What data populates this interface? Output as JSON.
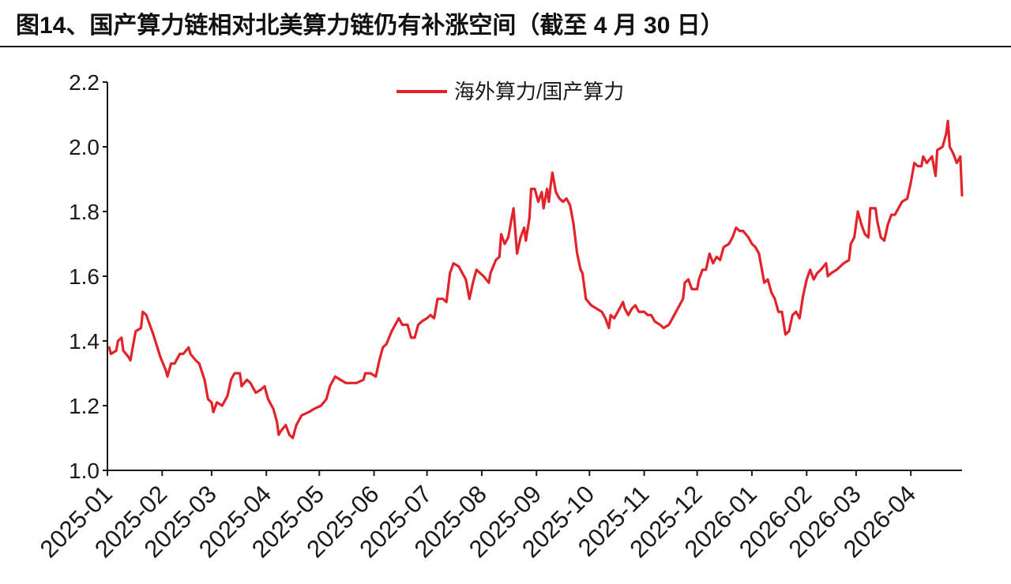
{
  "chart_data": {
    "type": "line",
    "title": "图14、国产算力链相对北美算力链仍有补涨空间（截至 4 月 30 日）",
    "xlabel": "",
    "ylabel": "",
    "xlim": [
      "2025-01-01",
      "2026-04-30"
    ],
    "ylim": [
      1.0,
      2.2
    ],
    "grid": false,
    "legend": {
      "position": "top-center"
    },
    "x_tick_labels": [
      "2025-01",
      "2025-02",
      "2025-03",
      "2025-04",
      "2025-05",
      "2025-06",
      "2025-07",
      "2025-08",
      "2025-09",
      "2025-10",
      "2025-11",
      "2025-12",
      "2026-01",
      "2026-02",
      "2026-03",
      "2026-04"
    ],
    "y_tick_labels": [
      "1.0",
      "1.2",
      "1.4",
      "1.6",
      "1.8",
      "2.0",
      "2.2"
    ],
    "series": [
      {
        "name": "海外算力/国产算力",
        "color": "#E3232B",
        "x": [
          "2025-01-02",
          "2025-01-03",
          "2025-01-06",
          "2025-01-07",
          "2025-01-09",
          "2025-01-10",
          "2025-01-13",
          "2025-01-14",
          "2025-01-16",
          "2025-01-17",
          "2025-01-20",
          "2025-01-21",
          "2025-01-23",
          "2025-01-27",
          "2025-01-31",
          "2025-02-03",
          "2025-02-04",
          "2025-02-06",
          "2025-02-08",
          "2025-02-11",
          "2025-02-13",
          "2025-02-16",
          "2025-02-17",
          "2025-02-20",
          "2025-02-22",
          "2025-02-25",
          "2025-02-27",
          "2025-03-01",
          "2025-03-02",
          "2025-03-04",
          "2025-03-07",
          "2025-03-10",
          "2025-03-12",
          "2025-03-14",
          "2025-03-17",
          "2025-03-18",
          "2025-03-21",
          "2025-03-23",
          "2025-03-26",
          "2025-03-29",
          "2025-03-31",
          "2025-04-02",
          "2025-04-05",
          "2025-04-07",
          "2025-04-08",
          "2025-04-09",
          "2025-04-12",
          "2025-04-14",
          "2025-04-16",
          "2025-04-18",
          "2025-04-21",
          "2025-04-25",
          "2025-04-28",
          "2025-05-02",
          "2025-05-05",
          "2025-05-07",
          "2025-05-10",
          "2025-05-13",
          "2025-05-16",
          "2025-05-19",
          "2025-05-22",
          "2025-05-26",
          "2025-05-27",
          "2025-05-30",
          "2025-06-02",
          "2025-06-04",
          "2025-06-06",
          "2025-06-08",
          "2025-06-11",
          "2025-06-13",
          "2025-06-15",
          "2025-06-17",
          "2025-06-20",
          "2025-06-22",
          "2025-06-24",
          "2025-06-26",
          "2025-06-28",
          "2025-07-01",
          "2025-07-03",
          "2025-07-05",
          "2025-07-07",
          "2025-07-10",
          "2025-07-12",
          "2025-07-14",
          "2025-07-16",
          "2025-07-19",
          "2025-07-21",
          "2025-07-23",
          "2025-07-25",
          "2025-07-27",
          "2025-07-29",
          "2025-07-31",
          "2025-08-02",
          "2025-08-05",
          "2025-08-06",
          "2025-08-09",
          "2025-08-11",
          "2025-08-12",
          "2025-08-14",
          "2025-08-16",
          "2025-08-18",
          "2025-08-19",
          "2025-08-21",
          "2025-08-23",
          "2025-08-25",
          "2025-08-26",
          "2025-08-28",
          "2025-08-29",
          "2025-08-31",
          "2025-09-02",
          "2025-09-04",
          "2025-09-05",
          "2025-09-07",
          "2025-09-08",
          "2025-09-09",
          "2025-09-10",
          "2025-09-12",
          "2025-09-14",
          "2025-09-16",
          "2025-09-18",
          "2025-09-20",
          "2025-09-22",
          "2025-09-24",
          "2025-09-26",
          "2025-09-27",
          "2025-09-29",
          "2025-10-02",
          "2025-10-05",
          "2025-10-08",
          "2025-10-10",
          "2025-10-12",
          "2025-10-13",
          "2025-10-15",
          "2025-10-17",
          "2025-10-20",
          "2025-10-21",
          "2025-10-23",
          "2025-10-25",
          "2025-10-27",
          "2025-10-29",
          "2025-11-01",
          "2025-11-03",
          "2025-11-05",
          "2025-11-07",
          "2025-11-10",
          "2025-11-12",
          "2025-11-15",
          "2025-11-17",
          "2025-11-19",
          "2025-11-21",
          "2025-11-23",
          "2025-11-24",
          "2025-11-26",
          "2025-11-28",
          "2025-12-01",
          "2025-12-02",
          "2025-12-04",
          "2025-12-06",
          "2025-12-08",
          "2025-12-10",
          "2025-12-12",
          "2025-12-14",
          "2025-12-16",
          "2025-12-19",
          "2025-12-21",
          "2025-12-23",
          "2025-12-25",
          "2025-12-27",
          "2025-12-30",
          "2026-01-01",
          "2026-01-03",
          "2026-01-05",
          "2026-01-07",
          "2026-01-08",
          "2026-01-10",
          "2026-01-12",
          "2026-01-14",
          "2026-01-16",
          "2026-01-18",
          "2026-01-20",
          "2026-01-22",
          "2026-01-24",
          "2026-01-26",
          "2026-01-28",
          "2026-01-30",
          "2026-02-01",
          "2026-02-03",
          "2026-02-05",
          "2026-02-07",
          "2026-02-09",
          "2026-02-12",
          "2026-02-13",
          "2026-02-15",
          "2026-02-18",
          "2026-02-22",
          "2026-02-25",
          "2026-02-26",
          "2026-02-28",
          "2026-03-02",
          "2026-03-04",
          "2026-03-06",
          "2026-03-08",
          "2026-03-09",
          "2026-03-12",
          "2026-03-13",
          "2026-03-15",
          "2026-03-17",
          "2026-03-19",
          "2026-03-21",
          "2026-03-23",
          "2026-03-25",
          "2026-03-27",
          "2026-03-30",
          "2026-04-01",
          "2026-04-03",
          "2026-04-05",
          "2026-04-07",
          "2026-04-08",
          "2026-04-10",
          "2026-04-13",
          "2026-04-15",
          "2026-04-16",
          "2026-04-19",
          "2026-04-21",
          "2026-04-22",
          "2026-04-23",
          "2026-04-25",
          "2026-04-27",
          "2026-04-29",
          "2026-04-30"
        ],
        "y": [
          1.38,
          1.36,
          1.37,
          1.4,
          1.41,
          1.37,
          1.35,
          1.34,
          1.4,
          1.43,
          1.44,
          1.49,
          1.48,
          1.42,
          1.35,
          1.31,
          1.29,
          1.33,
          1.33,
          1.36,
          1.36,
          1.38,
          1.36,
          1.34,
          1.33,
          1.28,
          1.22,
          1.21,
          1.18,
          1.21,
          1.2,
          1.23,
          1.28,
          1.3,
          1.3,
          1.26,
          1.28,
          1.27,
          1.24,
          1.25,
          1.26,
          1.22,
          1.19,
          1.15,
          1.11,
          1.12,
          1.14,
          1.11,
          1.1,
          1.14,
          1.17,
          1.18,
          1.19,
          1.2,
          1.22,
          1.26,
          1.29,
          1.28,
          1.27,
          1.27,
          1.27,
          1.28,
          1.3,
          1.3,
          1.29,
          1.34,
          1.38,
          1.39,
          1.43,
          1.45,
          1.47,
          1.45,
          1.45,
          1.41,
          1.41,
          1.45,
          1.46,
          1.47,
          1.48,
          1.47,
          1.53,
          1.53,
          1.52,
          1.61,
          1.64,
          1.63,
          1.61,
          1.59,
          1.53,
          1.58,
          1.62,
          1.61,
          1.6,
          1.58,
          1.61,
          1.65,
          1.66,
          1.73,
          1.7,
          1.72,
          1.78,
          1.81,
          1.67,
          1.72,
          1.75,
          1.71,
          1.78,
          1.87,
          1.87,
          1.83,
          1.86,
          1.81,
          1.87,
          1.83,
          1.88,
          1.92,
          1.86,
          1.84,
          1.83,
          1.84,
          1.82,
          1.76,
          1.67,
          1.62,
          1.61,
          1.53,
          1.51,
          1.5,
          1.49,
          1.47,
          1.44,
          1.48,
          1.47,
          1.49,
          1.52,
          1.5,
          1.48,
          1.5,
          1.51,
          1.49,
          1.49,
          1.48,
          1.48,
          1.46,
          1.45,
          1.44,
          1.45,
          1.47,
          1.49,
          1.51,
          1.53,
          1.58,
          1.59,
          1.56,
          1.56,
          1.59,
          1.62,
          1.62,
          1.67,
          1.64,
          1.66,
          1.65,
          1.69,
          1.7,
          1.72,
          1.75,
          1.74,
          1.74,
          1.72,
          1.7,
          1.69,
          1.67,
          1.61,
          1.58,
          1.59,
          1.55,
          1.53,
          1.49,
          1.49,
          1.42,
          1.43,
          1.48,
          1.49,
          1.47,
          1.54,
          1.59,
          1.62,
          1.59,
          1.61,
          1.62,
          1.64,
          1.6,
          1.61,
          1.62,
          1.64,
          1.65,
          1.7,
          1.72,
          1.8,
          1.76,
          1.73,
          1.72,
          1.81,
          1.81,
          1.77,
          1.72,
          1.71,
          1.76,
          1.79,
          1.79,
          1.81,
          1.83,
          1.84,
          1.89,
          1.95,
          1.94,
          1.94,
          1.97,
          1.95,
          1.97,
          1.91,
          1.99,
          2.0,
          2.04,
          2.08,
          2.0,
          1.98,
          1.95,
          1.97,
          1.85
        ]
      }
    ]
  }
}
